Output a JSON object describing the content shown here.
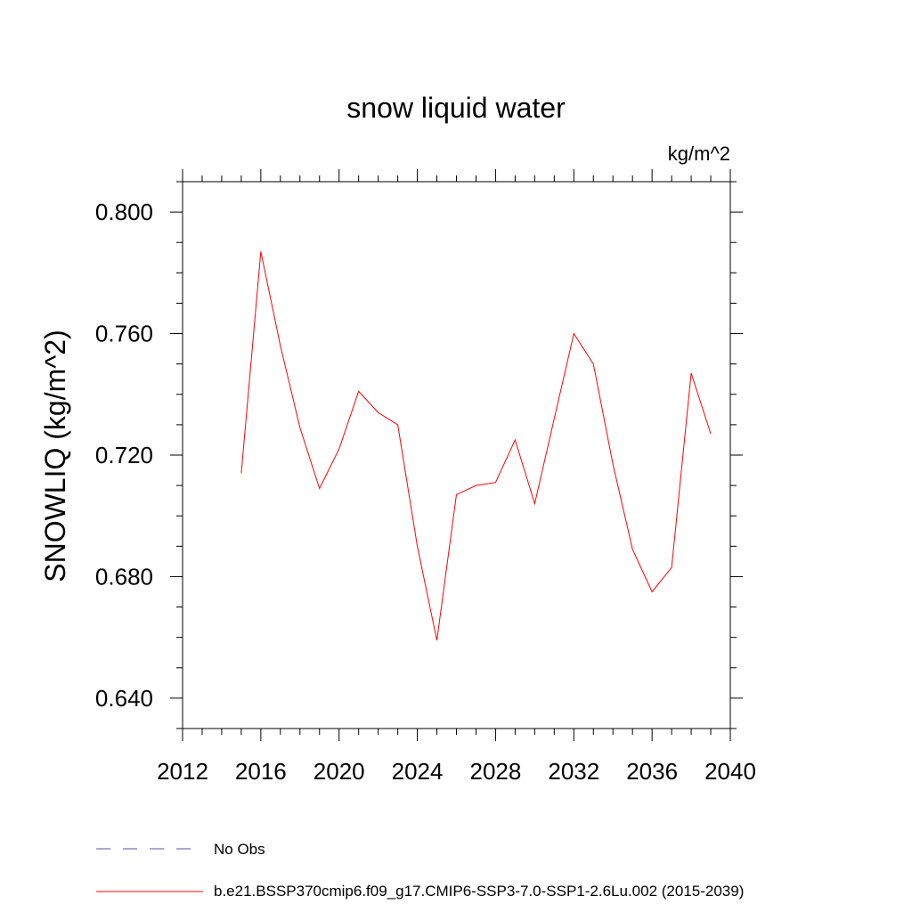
{
  "chart_data": {
    "type": "line",
    "title": "snow liquid water",
    "units": "kg/m^2",
    "ylabel": "SNOWLIQ  (kg/m^2)",
    "xlabel": "",
    "xlim": [
      2012,
      2040
    ],
    "ylim": [
      0.63,
      0.81
    ],
    "x_ticks": [
      2012,
      2016,
      2020,
      2024,
      2028,
      2032,
      2036,
      2040
    ],
    "x_tick_labels": [
      "2012",
      "2016",
      "2020",
      "2024",
      "2028",
      "2032",
      "2036",
      "2040"
    ],
    "y_ticks": [
      0.64,
      0.68,
      0.72,
      0.76,
      0.8
    ],
    "y_tick_labels": [
      "0.640",
      "0.680",
      "0.720",
      "0.760",
      "0.800"
    ],
    "grid": false,
    "legend_position": "bottom-left",
    "series": [
      {
        "name": "No Obs",
        "color": "#5b4fa8",
        "style": "dashed",
        "x": [],
        "y": []
      },
      {
        "name": "b.e21.BSSP370cmip6.f09_g17.CMIP6-SSP3-7.0-SSP1-2.6Lu.002 (2015-2039)",
        "color": "#ff0000",
        "style": "solid",
        "x": [
          2015,
          2016,
          2017,
          2018,
          2019,
          2020,
          2021,
          2022,
          2023,
          2024,
          2025,
          2026,
          2027,
          2028,
          2029,
          2030,
          2031,
          2032,
          2033,
          2034,
          2035,
          2036,
          2037,
          2038,
          2039
        ],
        "y": [
          0.714,
          0.787,
          0.756,
          0.729,
          0.709,
          0.722,
          0.741,
          0.734,
          0.73,
          0.69,
          0.659,
          0.707,
          0.71,
          0.711,
          0.725,
          0.704,
          0.732,
          0.76,
          0.75,
          0.717,
          0.689,
          0.675,
          0.683,
          0.747,
          0.727
        ]
      }
    ]
  }
}
